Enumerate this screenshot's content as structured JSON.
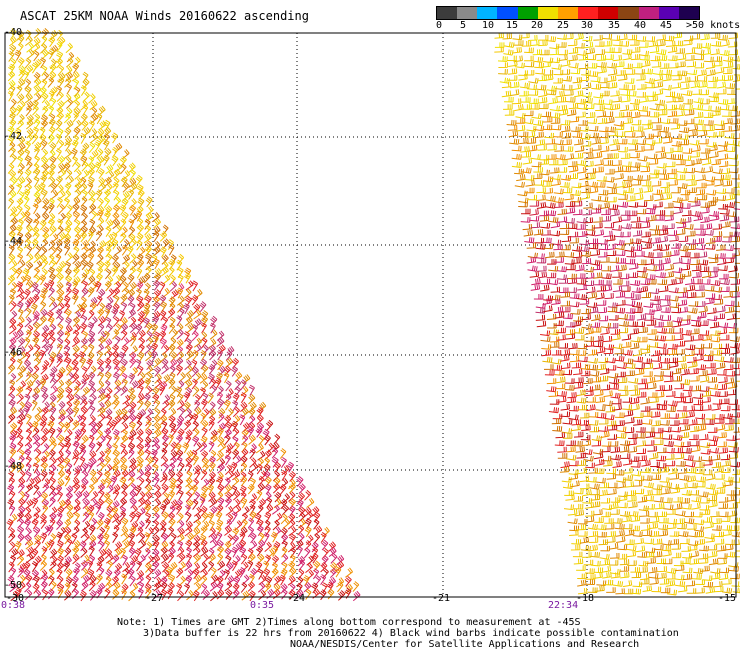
{
  "title": "ASCAT 25KM NOAA Winds 20160622 ascending",
  "colorbar": {
    "labels": [
      "0",
      "5",
      "10",
      "15",
      "20",
      "25",
      "30",
      "35",
      "40",
      "45",
      ">50 knots"
    ],
    "colors": [
      "#3c3c3c",
      "#8a8a8a",
      "#00b4ff",
      "#0050ff",
      "#00a000",
      "#f0e000",
      "#ffa000",
      "#ff2020",
      "#d00000",
      "#8b4513",
      "#c02080",
      "#5a00b4",
      "#1e0050"
    ]
  },
  "axes": {
    "lat_labels": [
      "-40",
      "-42",
      "-44",
      "-46",
      "-48",
      "-50"
    ],
    "lon_labels": [
      "-30",
      "-27",
      "-24",
      "-21",
      "-18",
      "-15"
    ],
    "time_labels": [
      "0:38",
      "0:35",
      "22:34"
    ]
  },
  "notes": {
    "line1": "Note: 1) Times are GMT 2)Times along bottom correspond to measurement at -45S",
    "line2": "3)Data buffer is 22 hrs from 20160622 4) Black wind barbs indicate possible contamination",
    "line3": "NOAA/NESDIS/Center for Satellite Applications and Research"
  }
}
